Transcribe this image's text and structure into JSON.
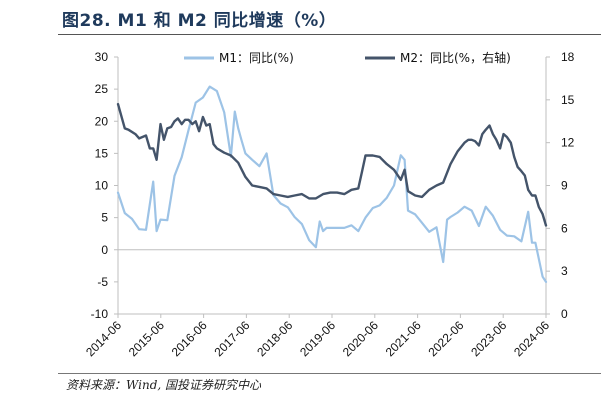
{
  "figure": {
    "title": "图28. M1 和 M2 同比增速（%）",
    "source": "资料来源：Wind, 国投证券研究中心"
  },
  "colors": {
    "m1": "#9dc3e6",
    "m2": "#44546a",
    "axis": "#bfbfbf",
    "text": "#111111"
  },
  "chart_data": {
    "type": "line",
    "x_tick_labels": [
      "2014-06",
      "2015-06",
      "2016-06",
      "2017-06",
      "2018-06",
      "2019-06",
      "2020-06",
      "2021-06",
      "2022-06",
      "2023-06",
      "2024-06"
    ],
    "y_left": {
      "range": [
        -10,
        30
      ],
      "ticks": [
        "-10",
        "-5",
        "0",
        "5",
        "10",
        "15",
        "20",
        "25",
        "30"
      ]
    },
    "y_right": {
      "range": [
        0,
        18
      ],
      "ticks": [
        "0",
        "3",
        "6",
        "9",
        "12",
        "15",
        "18"
      ]
    },
    "legend": {
      "position": "top",
      "entries": [
        "M1：同比(%)",
        "M2：同比(%，右轴)"
      ]
    },
    "grid": false,
    "series": [
      {
        "name": "M1：同比(%)",
        "axis": "left",
        "x": [
          2014.42,
          2014.58,
          2014.75,
          2014.92,
          2015.08,
          2015.25,
          2015.33,
          2015.42,
          2015.58,
          2015.75,
          2015.92,
          2016.08,
          2016.25,
          2016.42,
          2016.58,
          2016.75,
          2016.92,
          2017.08,
          2017.17,
          2017.25,
          2017.33,
          2017.42,
          2017.58,
          2017.75,
          2017.92,
          2018.08,
          2018.25,
          2018.42,
          2018.58,
          2018.75,
          2018.92,
          2019.08,
          2019.17,
          2019.25,
          2019.33,
          2019.42,
          2019.58,
          2019.75,
          2019.92,
          2020.08,
          2020.25,
          2020.42,
          2020.58,
          2020.75,
          2020.92,
          2021.08,
          2021.17,
          2021.25,
          2021.42,
          2021.58,
          2021.75,
          2021.92,
          2022.08,
          2022.17,
          2022.25,
          2022.42,
          2022.58,
          2022.75,
          2022.92,
          2023.08,
          2023.25,
          2023.42,
          2023.58,
          2023.75,
          2023.92,
          2024.08,
          2024.17,
          2024.25,
          2024.42,
          2024.5
        ],
        "values": [
          8.9,
          5.7,
          4.8,
          3.2,
          3.1,
          10.6,
          2.9,
          4.7,
          4.6,
          11.5,
          14.4,
          18.6,
          22.9,
          23.7,
          25.4,
          24.7,
          21.4,
          14.5,
          21.5,
          18.9,
          17.0,
          15.0,
          14.0,
          13.0,
          15.0,
          8.5,
          7.2,
          6.6,
          5.1,
          4.0,
          1.5,
          0.4,
          4.4,
          2.9,
          3.4,
          3.4,
          3.4,
          3.4,
          3.8,
          2.9,
          5.0,
          6.5,
          6.9,
          8.1,
          10.0,
          14.7,
          14.0,
          6.1,
          5.5,
          4.2,
          2.8,
          3.5,
          -1.9,
          4.7,
          5.1,
          5.8,
          6.7,
          6.1,
          3.7,
          6.7,
          5.3,
          3.1,
          2.2,
          2.1,
          1.3,
          5.9,
          1.1,
          1.1,
          -4.2,
          -5.0
        ]
      },
      {
        "name": "M2：同比(%，右轴)",
        "axis": "right",
        "x": [
          2014.42,
          2014.58,
          2014.67,
          2014.83,
          2014.92,
          2015.08,
          2015.17,
          2015.25,
          2015.33,
          2015.42,
          2015.5,
          2015.58,
          2015.67,
          2015.75,
          2015.83,
          2015.92,
          2016.0,
          2016.08,
          2016.17,
          2016.25,
          2016.33,
          2016.42,
          2016.5,
          2016.58,
          2016.67,
          2016.75,
          2016.92,
          2017.08,
          2017.25,
          2017.42,
          2017.58,
          2017.75,
          2017.92,
          2018.08,
          2018.25,
          2018.42,
          2018.58,
          2018.75,
          2018.92,
          2019.08,
          2019.25,
          2019.42,
          2019.58,
          2019.75,
          2019.92,
          2020.08,
          2020.17,
          2020.25,
          2020.42,
          2020.58,
          2020.75,
          2020.92,
          2021.08,
          2021.17,
          2021.25,
          2021.42,
          2021.58,
          2021.75,
          2021.92,
          2022.08,
          2022.25,
          2022.42,
          2022.58,
          2022.67,
          2022.75,
          2022.83,
          2022.92,
          2023.0,
          2023.08,
          2023.17,
          2023.25,
          2023.33,
          2023.42,
          2023.5,
          2023.58,
          2023.67,
          2023.75,
          2023.83,
          2023.92,
          2024.0,
          2024.08,
          2024.17,
          2024.25,
          2024.33,
          2024.42,
          2024.5
        ],
        "values": [
          14.7,
          13.0,
          12.9,
          12.6,
          12.3,
          12.5,
          11.6,
          11.6,
          10.8,
          13.3,
          12.2,
          13.0,
          13.1,
          13.5,
          13.7,
          13.3,
          13.6,
          13.6,
          13.3,
          13.5,
          12.8,
          13.8,
          13.2,
          13.3,
          11.9,
          11.6,
          11.3,
          11.1,
          10.6,
          9.6,
          9.0,
          8.9,
          8.8,
          8.4,
          8.3,
          8.2,
          8.3,
          8.4,
          8.1,
          8.1,
          8.4,
          8.5,
          8.5,
          8.4,
          8.7,
          8.8,
          10.0,
          11.1,
          11.1,
          11.0,
          10.5,
          10.1,
          9.4,
          10.1,
          8.6,
          8.3,
          8.2,
          8.7,
          9.0,
          9.2,
          10.5,
          11.4,
          12.0,
          12.2,
          12.2,
          12.1,
          11.8,
          12.6,
          12.9,
          13.2,
          12.6,
          12.2,
          11.6,
          12.6,
          12.4,
          12.0,
          11.0,
          10.3,
          10.0,
          9.7,
          8.7,
          8.3,
          8.3,
          7.5,
          7.0,
          6.2
        ]
      }
    ]
  }
}
